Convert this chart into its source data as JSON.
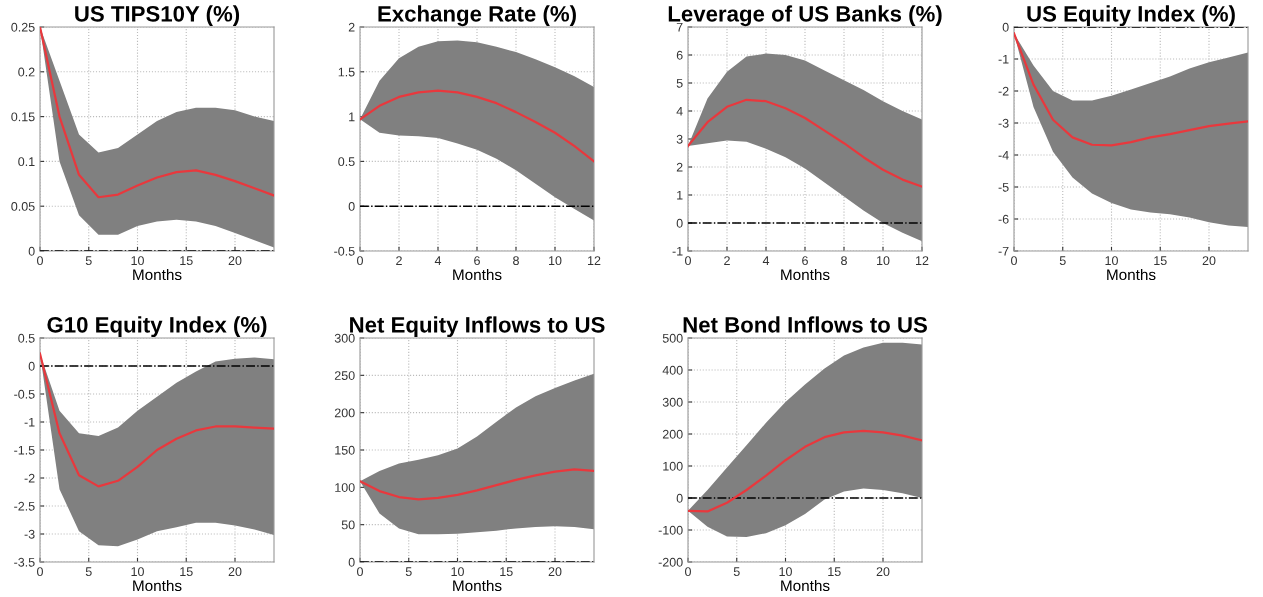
{
  "chart_data": [
    {
      "type": "line",
      "title": "US TIPS10Y (%)",
      "xlabel": "Months",
      "xlim": [
        0,
        24
      ],
      "xticks": [
        0,
        5,
        10,
        15,
        20
      ],
      "ylim": [
        0,
        0.25
      ],
      "yticks": [
        0,
        0.05,
        0.1,
        0.15,
        0.2,
        0.25
      ],
      "grid": true,
      "line_style": "solid",
      "x": [
        0,
        2,
        4,
        6,
        8,
        10,
        12,
        14,
        16,
        18,
        20,
        22,
        24
      ],
      "series": [
        {
          "color": "#e8383d",
          "values": [
            0.25,
            0.15,
            0.085,
            0.06,
            0.063,
            0.073,
            0.082,
            0.088,
            0.09,
            0.085,
            0.078,
            0.07,
            0.062
          ],
          "upper": [
            0.25,
            0.19,
            0.13,
            0.11,
            0.115,
            0.13,
            0.145,
            0.155,
            0.16,
            0.16,
            0.157,
            0.15,
            0.145
          ],
          "lower": [
            0.25,
            0.1,
            0.04,
            0.018,
            0.018,
            0.028,
            0.033,
            0.035,
            0.033,
            0.028,
            0.02,
            0.012,
            0.004
          ]
        }
      ],
      "ref_lines": [
        {
          "axis": "y",
          "value": 0,
          "color": "#000000",
          "line_style": "dashdot"
        }
      ]
    },
    {
      "type": "line",
      "title": "Exchange Rate (%)",
      "xlabel": "Months",
      "xlim": [
        0,
        12
      ],
      "xticks": [
        0,
        2,
        4,
        6,
        8,
        10,
        12
      ],
      "ylim": [
        -0.5,
        2
      ],
      "yticks": [
        -0.5,
        0,
        0.5,
        1,
        1.5,
        2
      ],
      "grid": true,
      "line_style": "solid",
      "x": [
        0,
        1,
        2,
        3,
        4,
        5,
        6,
        7,
        8,
        9,
        10,
        11,
        12
      ],
      "series": [
        {
          "color": "#e8383d",
          "values": [
            0.97,
            1.12,
            1.22,
            1.27,
            1.29,
            1.27,
            1.22,
            1.15,
            1.05,
            0.94,
            0.82,
            0.67,
            0.5
          ],
          "upper": [
            0.97,
            1.4,
            1.65,
            1.78,
            1.84,
            1.85,
            1.83,
            1.78,
            1.72,
            1.64,
            1.55,
            1.45,
            1.33
          ],
          "lower": [
            0.97,
            0.82,
            0.79,
            0.78,
            0.76,
            0.7,
            0.63,
            0.53,
            0.4,
            0.25,
            0.1,
            -0.03,
            -0.16
          ]
        }
      ],
      "ref_lines": [
        {
          "axis": "y",
          "value": 0,
          "color": "#000000",
          "line_style": "dashdot"
        }
      ]
    },
    {
      "type": "line",
      "title": "Leverage of US Banks (%)",
      "xlabel": "Months",
      "xlim": [
        0,
        12
      ],
      "xticks": [
        0,
        2,
        4,
        6,
        8,
        10,
        12
      ],
      "ylim": [
        -1,
        7
      ],
      "yticks": [
        -1,
        0,
        1,
        2,
        3,
        4,
        5,
        6,
        7
      ],
      "grid": true,
      "line_style": "solid",
      "x": [
        0,
        1,
        2,
        3,
        4,
        5,
        6,
        7,
        8,
        9,
        10,
        11,
        12
      ],
      "series": [
        {
          "color": "#e8383d",
          "values": [
            2.75,
            3.6,
            4.15,
            4.4,
            4.35,
            4.1,
            3.75,
            3.3,
            2.85,
            2.35,
            1.9,
            1.55,
            1.3
          ],
          "upper": [
            2.75,
            4.45,
            5.4,
            5.95,
            6.05,
            6.0,
            5.8,
            5.45,
            5.1,
            4.75,
            4.35,
            4.0,
            3.7
          ],
          "lower": [
            2.75,
            2.85,
            2.95,
            2.9,
            2.65,
            2.35,
            1.95,
            1.45,
            0.95,
            0.45,
            0.0,
            -0.35,
            -0.65
          ]
        }
      ],
      "ref_lines": [
        {
          "axis": "y",
          "value": 0,
          "color": "#000000",
          "line_style": "dashdot"
        }
      ]
    },
    {
      "type": "line",
      "title": "US Equity Index (%)",
      "xlabel": "Months",
      "xlim": [
        0,
        24
      ],
      "xticks": [
        0,
        5,
        10,
        15,
        20
      ],
      "ylim": [
        -7,
        0
      ],
      "yticks": [
        -7,
        -6,
        -5,
        -4,
        -3,
        -2,
        -1,
        0
      ],
      "grid": true,
      "line_style": "solid",
      "x": [
        0,
        2,
        4,
        6,
        8,
        10,
        12,
        14,
        16,
        18,
        20,
        22,
        24
      ],
      "series": [
        {
          "color": "#e8383d",
          "values": [
            -0.2,
            -1.8,
            -2.9,
            -3.45,
            -3.68,
            -3.7,
            -3.6,
            -3.45,
            -3.35,
            -3.22,
            -3.1,
            -3.02,
            -2.95
          ],
          "upper": [
            -0.2,
            -1.2,
            -2.0,
            -2.3,
            -2.3,
            -2.15,
            -1.95,
            -1.75,
            -1.55,
            -1.3,
            -1.1,
            -0.95,
            -0.8
          ],
          "lower": [
            -0.2,
            -2.5,
            -3.9,
            -4.7,
            -5.2,
            -5.5,
            -5.7,
            -5.8,
            -5.85,
            -5.95,
            -6.1,
            -6.2,
            -6.25
          ]
        }
      ],
      "ref_lines": [
        {
          "axis": "y",
          "value": 0,
          "color": "#000000",
          "line_style": "dashdot"
        }
      ]
    },
    {
      "type": "line",
      "title": "G10 Equity Index (%)",
      "xlabel": "Months",
      "xlim": [
        0,
        24
      ],
      "xticks": [
        0,
        5,
        10,
        15,
        20
      ],
      "ylim": [
        -3.5,
        0.5
      ],
      "yticks": [
        -3.5,
        -3,
        -2.5,
        -2,
        -1.5,
        -1,
        -0.5,
        0,
        0.5
      ],
      "grid": true,
      "line_style": "solid",
      "x": [
        0,
        2,
        4,
        6,
        8,
        10,
        12,
        14,
        16,
        18,
        20,
        22,
        24
      ],
      "series": [
        {
          "color": "#e8383d",
          "values": [
            0.22,
            -1.2,
            -1.95,
            -2.15,
            -2.05,
            -1.8,
            -1.5,
            -1.3,
            -1.15,
            -1.08,
            -1.08,
            -1.1,
            -1.12
          ],
          "upper": [
            0.22,
            -0.8,
            -1.2,
            -1.25,
            -1.1,
            -0.8,
            -0.55,
            -0.3,
            -0.1,
            0.08,
            0.13,
            0.15,
            0.12
          ],
          "lower": [
            0.22,
            -2.2,
            -2.95,
            -3.2,
            -3.22,
            -3.1,
            -2.95,
            -2.88,
            -2.8,
            -2.8,
            -2.85,
            -2.92,
            -3.02
          ]
        }
      ],
      "ref_lines": [
        {
          "axis": "y",
          "value": 0,
          "color": "#000000",
          "line_style": "dashdot"
        }
      ]
    },
    {
      "type": "line",
      "title": "Net Equity Inflows to US",
      "xlabel": "Months",
      "xlim": [
        0,
        24
      ],
      "xticks": [
        0,
        5,
        10,
        15,
        20
      ],
      "ylim": [
        0,
        300
      ],
      "yticks": [
        0,
        50,
        100,
        150,
        200,
        250,
        300
      ],
      "grid": true,
      "line_style": "solid",
      "x": [
        0,
        2,
        4,
        6,
        8,
        10,
        12,
        14,
        16,
        18,
        20,
        22,
        24
      ],
      "series": [
        {
          "color": "#e8383d",
          "values": [
            108,
            95,
            87,
            84,
            86,
            90,
            96,
            103,
            110,
            116,
            121,
            124,
            122
          ],
          "upper": [
            108,
            122,
            132,
            137,
            143,
            152,
            168,
            188,
            207,
            222,
            233,
            243,
            252
          ],
          "lower": [
            108,
            65,
            45,
            37,
            37,
            38,
            40,
            42,
            45,
            47,
            48,
            47,
            44
          ]
        }
      ],
      "ref_lines": [
        {
          "axis": "y",
          "value": 0,
          "color": "#000000",
          "line_style": "dashdot"
        }
      ]
    },
    {
      "type": "line",
      "title": "Net Bond Inflows to US",
      "xlabel": "Months",
      "xlim": [
        0,
        24
      ],
      "xticks": [
        0,
        5,
        10,
        15,
        20
      ],
      "ylim": [
        -200,
        500
      ],
      "yticks": [
        -200,
        -100,
        0,
        100,
        200,
        300,
        400,
        500
      ],
      "grid": true,
      "line_style": "solid",
      "x": [
        0,
        2,
        4,
        6,
        8,
        10,
        12,
        14,
        16,
        18,
        20,
        22,
        24
      ],
      "series": [
        {
          "color": "#e8383d",
          "values": [
            -40,
            -42,
            -15,
            25,
            70,
            118,
            160,
            190,
            205,
            210,
            205,
            195,
            180
          ],
          "upper": [
            -40,
            25,
            95,
            165,
            235,
            300,
            355,
            405,
            445,
            470,
            485,
            485,
            480
          ],
          "lower": [
            -40,
            -90,
            -120,
            -122,
            -110,
            -85,
            -50,
            -5,
            20,
            30,
            25,
            15,
            0
          ]
        }
      ],
      "ref_lines": [
        {
          "axis": "y",
          "value": 0,
          "color": "#000000",
          "line_style": "dashdot"
        }
      ]
    }
  ]
}
